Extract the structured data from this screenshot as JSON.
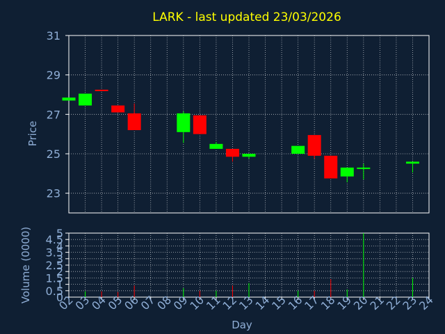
{
  "title": "LARK - last updated 23/03/2026",
  "colors": {
    "background": "#0f1f33",
    "title": "#ffff00",
    "axis_text": "#8faed6",
    "grid": "#ffffff",
    "up": "#00ff00",
    "down": "#ff0000"
  },
  "chart_data": [
    {
      "type": "candlestick",
      "ylabel": "Price",
      "ylim": [
        22,
        31
      ],
      "yticks": [
        "23",
        "25",
        "27",
        "29",
        "31"
      ],
      "x": [
        "02",
        "03",
        "04",
        "05",
        "06",
        "07",
        "08",
        "09",
        "10",
        "11",
        "12",
        "13",
        "14",
        "15",
        "16",
        "17",
        "18",
        "19",
        "20",
        "21",
        "22",
        "23",
        "24"
      ],
      "xlim": [
        2,
        24
      ],
      "grid": true,
      "candles": [
        {
          "day": 2,
          "open": 27.7,
          "close": 27.85,
          "high": 27.85,
          "low": 27.7
        },
        {
          "day": 3,
          "open": 27.45,
          "close": 28.05,
          "high": 28.05,
          "low": 27.45
        },
        {
          "day": 4,
          "open": 28.25,
          "close": 28.2,
          "high": 28.25,
          "low": 28.2
        },
        {
          "day": 5,
          "open": 27.45,
          "close": 27.1,
          "high": 27.45,
          "low": 27.1
        },
        {
          "day": 6,
          "open": 27.05,
          "close": 26.2,
          "high": 27.55,
          "low": 26.2
        },
        {
          "day": 9,
          "open": 26.1,
          "close": 27.05,
          "high": 27.15,
          "low": 25.55
        },
        {
          "day": 10,
          "open": 26.95,
          "close": 26.0,
          "high": 26.95,
          "low": 26.0
        },
        {
          "day": 11,
          "open": 25.25,
          "close": 25.5,
          "high": 25.6,
          "low": 25.25
        },
        {
          "day": 12,
          "open": 25.25,
          "close": 24.85,
          "high": 25.25,
          "low": 24.6
        },
        {
          "day": 13,
          "open": 24.85,
          "close": 25.0,
          "high": 25.0,
          "low": 24.75
        },
        {
          "day": 16,
          "open": 25.0,
          "close": 25.4,
          "high": 25.4,
          "low": 25.0
        },
        {
          "day": 17,
          "open": 25.95,
          "close": 24.9,
          "high": 25.95,
          "low": 24.75
        },
        {
          "day": 18,
          "open": 24.9,
          "close": 23.75,
          "high": 24.9,
          "low": 23.75
        },
        {
          "day": 19,
          "open": 23.85,
          "close": 24.3,
          "high": 24.3,
          "low": 23.55
        },
        {
          "day": 20,
          "open": 24.25,
          "close": 24.3,
          "high": 24.5,
          "low": 23.7
        },
        {
          "day": 23,
          "open": 24.5,
          "close": 24.6,
          "high": 24.6,
          "low": 24.05
        }
      ]
    },
    {
      "type": "bar",
      "ylabel": "Volume (0000)",
      "xlabel": "Day",
      "ylim": [
        0,
        5
      ],
      "yticks": [
        "0",
        "0.5",
        "1",
        "1.5",
        "2",
        "2.5",
        "3",
        "3.5",
        "4",
        "4.5",
        "5"
      ],
      "grid": true,
      "bars": [
        {
          "day": 3,
          "value": 0.45,
          "direction": "up"
        },
        {
          "day": 4,
          "value": 0.45,
          "direction": "down"
        },
        {
          "day": 5,
          "value": 0.4,
          "direction": "down"
        },
        {
          "day": 6,
          "value": 0.9,
          "direction": "down"
        },
        {
          "day": 9,
          "value": 0.7,
          "direction": "up"
        },
        {
          "day": 10,
          "value": 0.5,
          "direction": "down"
        },
        {
          "day": 11,
          "value": 0.5,
          "direction": "up"
        },
        {
          "day": 12,
          "value": 0.9,
          "direction": "down"
        },
        {
          "day": 13,
          "value": 1.1,
          "direction": "up"
        },
        {
          "day": 16,
          "value": 0.5,
          "direction": "up"
        },
        {
          "day": 17,
          "value": 0.5,
          "direction": "down"
        },
        {
          "day": 18,
          "value": 1.4,
          "direction": "down"
        },
        {
          "day": 19,
          "value": 0.6,
          "direction": "up"
        },
        {
          "day": 20,
          "value": 5.0,
          "direction": "up"
        },
        {
          "day": 23,
          "value": 1.5,
          "direction": "up"
        }
      ]
    }
  ]
}
